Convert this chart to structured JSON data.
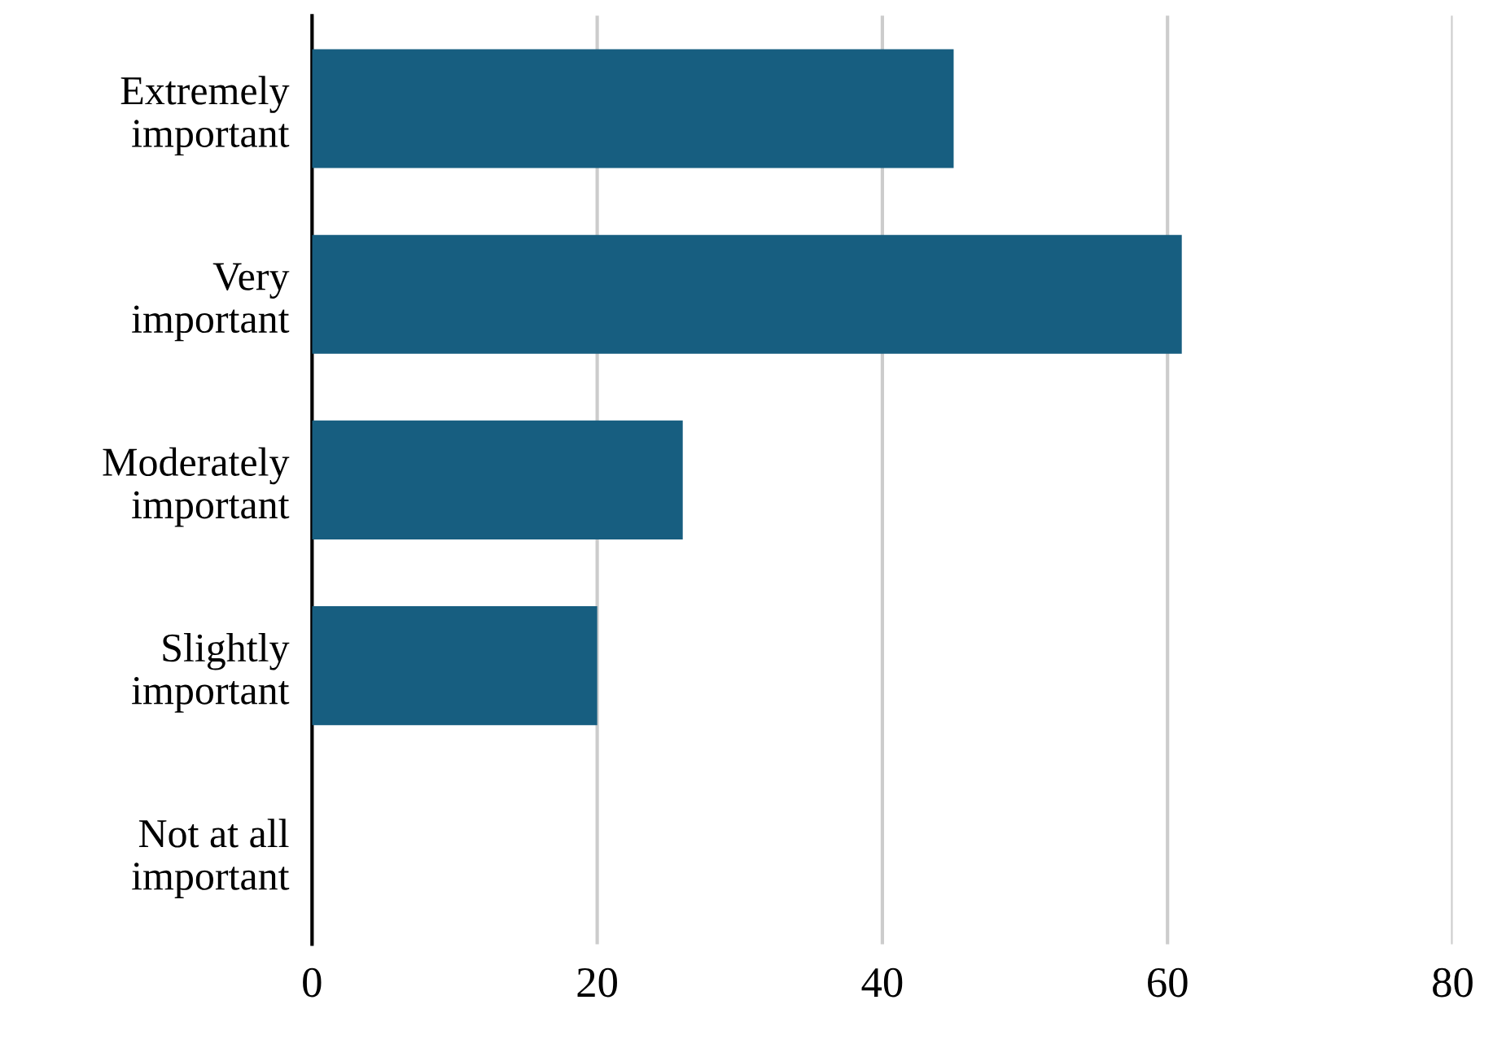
{
  "chart_data": {
    "type": "bar",
    "orientation": "horizontal",
    "categories": [
      "Extremely\nimportant",
      "Very\nimportant",
      "Moderately\nimportant",
      "Slightly\nimportant",
      "Not at all\nimportant"
    ],
    "values": [
      45,
      61,
      26,
      20,
      0
    ],
    "color": "#175e80",
    "xlim": [
      0,
      80
    ],
    "xticks": [
      0,
      20,
      40,
      60,
      80
    ],
    "grid": "x"
  }
}
